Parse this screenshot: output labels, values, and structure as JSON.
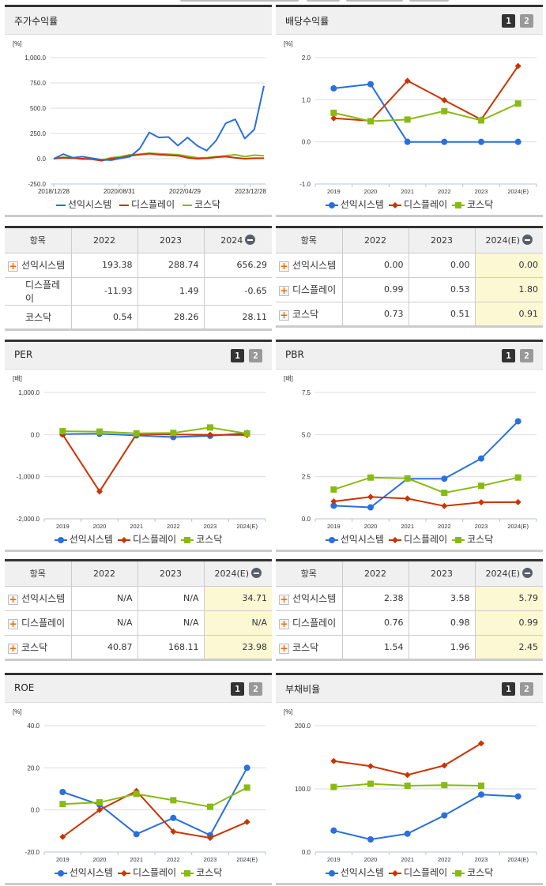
{
  "colors": {
    "series_1": "#2a6fdb",
    "series_2": "#cc3300",
    "series_3": "#88bb11",
    "highlight_cell": "#fdf8d4",
    "header_bg": "#f0f0f0"
  },
  "legend": [
    "선익시스템",
    "디스플레이",
    "코스닥"
  ],
  "page_buttons": {
    "one": "1",
    "two": "2"
  },
  "panels": {
    "stock_return": {
      "title": "주가수익률",
      "unit": "[%]",
      "y_ticks": [
        "1,000.0",
        "750.0",
        "500.0",
        "250.0",
        "0.0",
        "-250.0"
      ],
      "x_ticks": [
        "2018/12/28",
        "2020/08/31",
        "2022/04/29",
        "2023/12/28"
      ]
    },
    "dividend_yield": {
      "title": "배당수익률",
      "unit": "[%]",
      "y_ticks": [
        "2.0",
        "1.0",
        "0.0",
        "-1.0"
      ],
      "x_ticks": [
        "2019",
        "2020",
        "2021",
        "2022",
        "2023",
        "2024(E)"
      ]
    },
    "per": {
      "title": "PER",
      "unit": "[배]",
      "y_ticks": [
        "1,000.0",
        "0.0",
        "-1,000.0",
        "-2,000.0"
      ],
      "x_ticks": [
        "2019",
        "2020",
        "2021",
        "2022",
        "2023",
        "2024(E)"
      ]
    },
    "pbr": {
      "title": "PBR",
      "unit": "[배]",
      "y_ticks": [
        "7.5",
        "5.0",
        "2.5",
        "0.0"
      ],
      "x_ticks": [
        "2019",
        "2020",
        "2021",
        "2022",
        "2023",
        "2024(E)"
      ]
    },
    "roe": {
      "title": "ROE",
      "unit": "[%]",
      "y_ticks": [
        "40.0",
        "20.0",
        "0.0",
        "-20.0"
      ],
      "x_ticks": [
        "2019",
        "2020",
        "2021",
        "2022",
        "2023",
        "2024(E)"
      ]
    },
    "debt_ratio": {
      "title": "부채비율",
      "unit": "[%]",
      "y_ticks": [
        "200.0",
        "100.0",
        "0.0"
      ],
      "x_ticks": [
        "2019",
        "2020",
        "2021",
        "2022",
        "2023",
        "2024(E)"
      ]
    }
  },
  "tables": {
    "stock_return": {
      "headers": [
        "항목",
        "2022",
        "2023",
        "2024"
      ],
      "rows": [
        {
          "label": "선익시스템",
          "values": [
            "193.38",
            "288.74",
            "656.29"
          ]
        },
        {
          "label": "디스플레이",
          "values": [
            "-11.93",
            "1.49",
            "-0.65"
          ]
        },
        {
          "label": "코스닥",
          "values": [
            "0.54",
            "28.26",
            "28.11"
          ]
        }
      ]
    },
    "dividend_yield": {
      "headers": [
        "항목",
        "2022",
        "2023",
        "2024(E)"
      ],
      "rows": [
        {
          "label": "선익시스템",
          "values": [
            "0.00",
            "0.00",
            "0.00"
          ]
        },
        {
          "label": "디스플레이",
          "values": [
            "0.99",
            "0.53",
            "1.80"
          ]
        },
        {
          "label": "코스닥",
          "values": [
            "0.73",
            "0.51",
            "0.91"
          ]
        }
      ]
    },
    "per": {
      "headers": [
        "항목",
        "2022",
        "2023",
        "2024(E)"
      ],
      "rows": [
        {
          "label": "선익시스템",
          "values": [
            "N/A",
            "N/A",
            "34.71"
          ]
        },
        {
          "label": "디스플레이",
          "values": [
            "N/A",
            "N/A",
            "N/A"
          ]
        },
        {
          "label": "코스닥",
          "values": [
            "40.87",
            "168.11",
            "23.98"
          ]
        }
      ]
    },
    "pbr": {
      "headers": [
        "항목",
        "2022",
        "2023",
        "2024(E)"
      ],
      "rows": [
        {
          "label": "선익시스템",
          "values": [
            "2.38",
            "3.58",
            "5.79"
          ]
        },
        {
          "label": "디스플레이",
          "values": [
            "0.76",
            "0.98",
            "0.99"
          ]
        },
        {
          "label": "코스닥",
          "values": [
            "1.54",
            "1.96",
            "2.45"
          ]
        }
      ]
    }
  },
  "chart_data": [
    {
      "type": "line",
      "title": "주가수익률",
      "ylabel": "[%]",
      "ylim": [
        -250,
        1000
      ],
      "grid": true,
      "legend_position": "bottom",
      "x_tick_labels": [
        "2018/12/28",
        "2020/08/31",
        "2022/04/29",
        "2023/12/28"
      ],
      "x": [
        "2018/12",
        "2019/03",
        "2019/06",
        "2019/09",
        "2019/12",
        "2020/03",
        "2020/06",
        "2020/09",
        "2020/12",
        "2021/03",
        "2021/06",
        "2021/09",
        "2021/12",
        "2022/03",
        "2022/06",
        "2022/09",
        "2022/12",
        "2023/03",
        "2023/06",
        "2023/09",
        "2023/12",
        "2024/03",
        "2024/06"
      ],
      "series": [
        {
          "name": "선익시스템",
          "values": [
            0,
            45,
            10,
            20,
            5,
            -10,
            -15,
            5,
            20,
            100,
            260,
            210,
            215,
            130,
            210,
            130,
            80,
            180,
            350,
            390,
            200,
            290,
            720
          ]
        },
        {
          "name": "디스플레이",
          "values": [
            0,
            10,
            5,
            0,
            -5,
            -20,
            0,
            10,
            30,
            40,
            50,
            40,
            35,
            30,
            10,
            0,
            5,
            15,
            20,
            10,
            0,
            5,
            5
          ]
        },
        {
          "name": "코스닥",
          "values": [
            0,
            15,
            10,
            -5,
            0,
            -15,
            10,
            20,
            40,
            45,
            55,
            50,
            45,
            40,
            25,
            10,
            10,
            20,
            30,
            40,
            20,
            35,
            30
          ]
        }
      ]
    },
    {
      "type": "line",
      "title": "배당수익률",
      "ylabel": "[%]",
      "ylim": [
        -1,
        2
      ],
      "categories": [
        "2019",
        "2020",
        "2021",
        "2022",
        "2023",
        "2024(E)"
      ],
      "series": [
        {
          "name": "선익시스템",
          "values": [
            1.27,
            1.37,
            0.0,
            0.0,
            0.0,
            0.0
          ]
        },
        {
          "name": "디스플레이",
          "values": [
            0.56,
            0.5,
            1.45,
            0.99,
            0.53,
            1.8
          ]
        },
        {
          "name": "코스닥",
          "values": [
            0.69,
            0.49,
            0.53,
            0.73,
            0.51,
            0.91
          ]
        }
      ]
    },
    {
      "type": "line",
      "title": "PER",
      "ylabel": "[배]",
      "ylim": [
        -2000,
        1000
      ],
      "categories": [
        "2019",
        "2020",
        "2021",
        "2022",
        "2023",
        "2024(E)"
      ],
      "series": [
        {
          "name": "선익시스템",
          "values": [
            10,
            20,
            -20,
            -60,
            -30,
            34.71
          ]
        },
        {
          "name": "디스플레이",
          "values": [
            0,
            -1350,
            10,
            0,
            -5,
            -10
          ]
        },
        {
          "name": "코스닥",
          "values": [
            80,
            70,
            30,
            40.87,
            168.11,
            23.98
          ]
        }
      ]
    },
    {
      "type": "line",
      "title": "PBR",
      "ylabel": "[배]",
      "ylim": [
        0,
        7.5
      ],
      "categories": [
        "2019",
        "2020",
        "2021",
        "2022",
        "2023",
        "2024(E)"
      ],
      "series": [
        {
          "name": "선익시스템",
          "values": [
            0.78,
            0.68,
            2.38,
            2.38,
            3.58,
            5.79
          ]
        },
        {
          "name": "디스플레이",
          "values": [
            1.03,
            1.3,
            1.2,
            0.76,
            0.98,
            0.99
          ]
        },
        {
          "name": "코스닥",
          "values": [
            1.74,
            2.45,
            2.4,
            1.54,
            1.96,
            2.45
          ]
        }
      ]
    },
    {
      "type": "line",
      "title": "ROE",
      "ylabel": "[%]",
      "ylim": [
        -20,
        40
      ],
      "categories": [
        "2019",
        "2020",
        "2021",
        "2022",
        "2023",
        "2024(E)"
      ],
      "series": [
        {
          "name": "선익시스템",
          "values": [
            8.5,
            2.5,
            -11.5,
            -3.8,
            -12,
            20
          ]
        },
        {
          "name": "디스플레이",
          "values": [
            -12.8,
            0,
            9,
            -10.3,
            -13.3,
            -5.7
          ]
        },
        {
          "name": "코스닥",
          "values": [
            2.8,
            3.6,
            7.6,
            4.6,
            1.5,
            10.6
          ]
        }
      ]
    },
    {
      "type": "line",
      "title": "부채비율",
      "ylabel": "[%]",
      "ylim": [
        0,
        200
      ],
      "categories": [
        "2019",
        "2020",
        "2021",
        "2022",
        "2023",
        "2024(E)"
      ],
      "series": [
        {
          "name": "선익시스템",
          "values": [
            34,
            20,
            29,
            58,
            91,
            88
          ]
        },
        {
          "name": "디스플레이",
          "values": [
            144,
            136,
            122,
            137,
            172,
            null
          ]
        },
        {
          "name": "코스닥",
          "values": [
            103,
            108,
            105,
            106,
            105,
            null
          ]
        }
      ]
    }
  ]
}
